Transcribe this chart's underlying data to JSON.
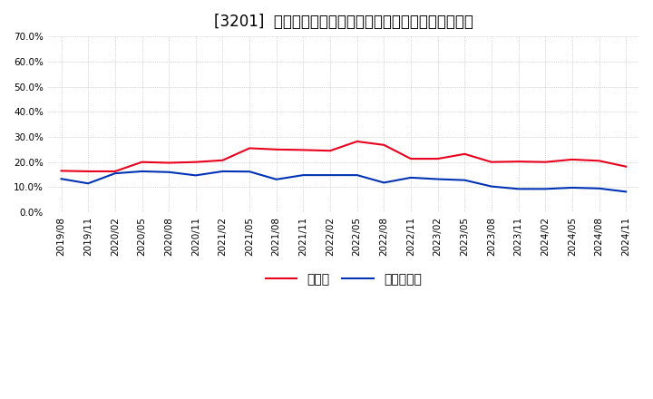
{
  "title": "[3201]  現預金、有利子負債の総資産に対する比率の推移",
  "x_labels": [
    "2019/08",
    "2019/11",
    "2020/02",
    "2020/05",
    "2020/08",
    "2020/11",
    "2021/02",
    "2021/05",
    "2021/08",
    "2021/11",
    "2022/02",
    "2022/05",
    "2022/08",
    "2022/11",
    "2023/02",
    "2023/05",
    "2023/08",
    "2023/11",
    "2024/02",
    "2024/05",
    "2024/08",
    "2024/11"
  ],
  "cash": [
    0.165,
    0.163,
    0.163,
    0.2,
    0.197,
    0.2,
    0.207,
    0.255,
    0.25,
    0.248,
    0.245,
    0.282,
    0.268,
    0.213,
    0.213,
    0.232,
    0.2,
    0.202,
    0.2,
    0.21,
    0.205,
    0.182
  ],
  "interest_bearing_debt": [
    0.133,
    0.115,
    0.155,
    0.163,
    0.16,
    0.147,
    0.163,
    0.162,
    0.131,
    0.148,
    0.148,
    0.148,
    0.118,
    0.138,
    0.132,
    0.128,
    0.103,
    0.093,
    0.093,
    0.098,
    0.095,
    0.082
  ],
  "cash_color": "#e8001c",
  "debt_color": "#0032b4",
  "legend_cash": "現預金",
  "legend_debt": "有利子負債",
  "ylim": [
    0.0,
    0.7
  ],
  "yticks": [
    0.0,
    0.1,
    0.2,
    0.3,
    0.4,
    0.5,
    0.6,
    0.7
  ],
  "background_color": "#ffffff",
  "grid_color": "#aaaaaa",
  "title_fontsize": 12,
  "axis_fontsize": 7.5,
  "legend_fontsize": 10
}
